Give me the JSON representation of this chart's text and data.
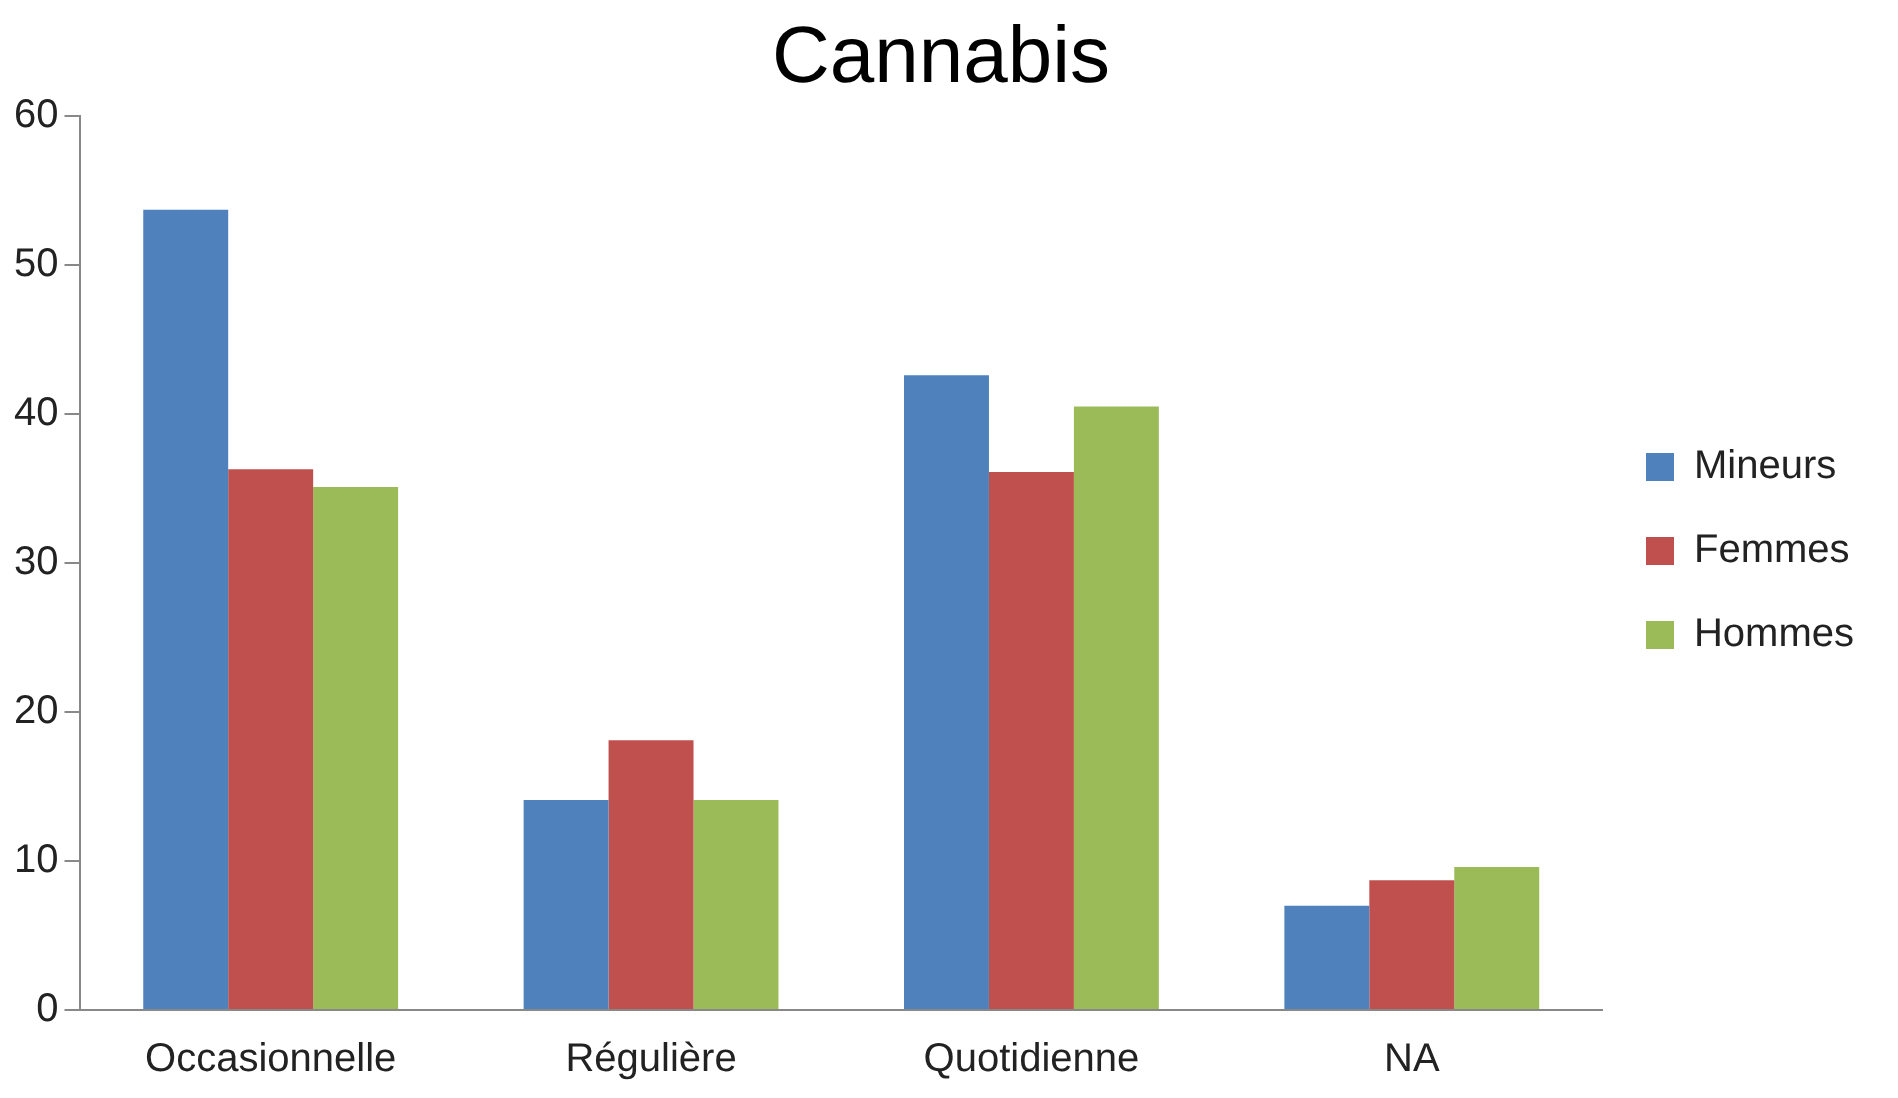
{
  "chart_data": {
    "type": "bar",
    "title": "Cannabis",
    "categories": [
      "Occasionnelle",
      "Régulière",
      "Quotidienne",
      "NA"
    ],
    "series": [
      {
        "name": "Mineurs",
        "color": "#4f81bd",
        "values": [
          53.7,
          14.1,
          42.6,
          7.0
        ]
      },
      {
        "name": "Femmes",
        "color": "#c0504d",
        "values": [
          36.3,
          18.1,
          36.1,
          8.7
        ]
      },
      {
        "name": "Hommes",
        "color": "#9bbb59",
        "values": [
          35.1,
          14.1,
          40.5,
          9.6
        ]
      }
    ],
    "ylim": [
      0,
      60
    ],
    "yticks": [
      0,
      10,
      20,
      30,
      40,
      50,
      60
    ],
    "grid": false,
    "legend": "right"
  }
}
